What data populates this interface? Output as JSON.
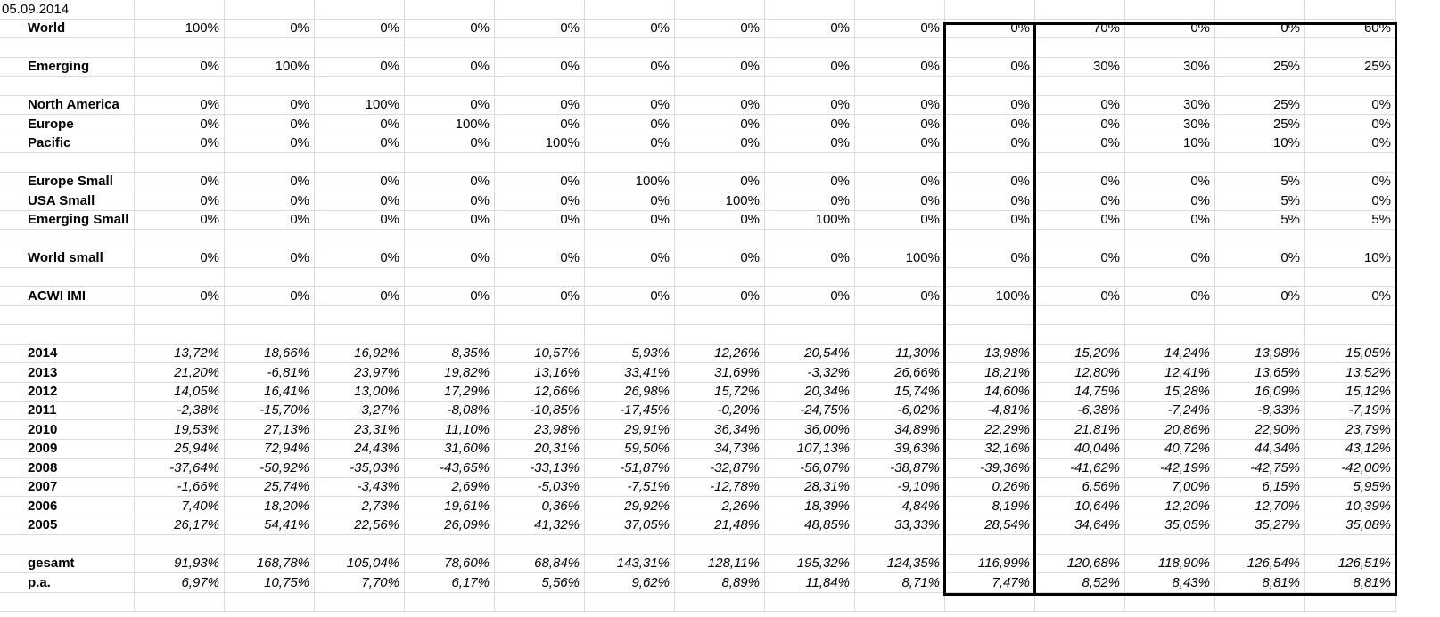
{
  "sheet": {
    "date": "05.09.2014",
    "allocations": [
      {
        "label": "World",
        "values": [
          "100%",
          "0%",
          "0%",
          "0%",
          "0%",
          "0%",
          "0%",
          "0%",
          "0%",
          "0%",
          "70%",
          "0%",
          "0%",
          "60%"
        ]
      },
      null,
      {
        "label": "Emerging",
        "values": [
          "0%",
          "100%",
          "0%",
          "0%",
          "0%",
          "0%",
          "0%",
          "0%",
          "0%",
          "0%",
          "30%",
          "30%",
          "25%",
          "25%"
        ]
      },
      null,
      {
        "label": "North America",
        "values": [
          "0%",
          "0%",
          "100%",
          "0%",
          "0%",
          "0%",
          "0%",
          "0%",
          "0%",
          "0%",
          "0%",
          "30%",
          "25%",
          "0%"
        ]
      },
      {
        "label": "Europe",
        "values": [
          "0%",
          "0%",
          "0%",
          "100%",
          "0%",
          "0%",
          "0%",
          "0%",
          "0%",
          "0%",
          "0%",
          "30%",
          "25%",
          "0%"
        ]
      },
      {
        "label": "Pacific",
        "values": [
          "0%",
          "0%",
          "0%",
          "0%",
          "100%",
          "0%",
          "0%",
          "0%",
          "0%",
          "0%",
          "0%",
          "10%",
          "10%",
          "0%"
        ]
      },
      null,
      {
        "label": "Europe Small",
        "values": [
          "0%",
          "0%",
          "0%",
          "0%",
          "0%",
          "100%",
          "0%",
          "0%",
          "0%",
          "0%",
          "0%",
          "0%",
          "5%",
          "0%"
        ]
      },
      {
        "label": "USA Small",
        "values": [
          "0%",
          "0%",
          "0%",
          "0%",
          "0%",
          "0%",
          "100%",
          "0%",
          "0%",
          "0%",
          "0%",
          "0%",
          "5%",
          "0%"
        ]
      },
      {
        "label": "Emerging Small",
        "values": [
          "0%",
          "0%",
          "0%",
          "0%",
          "0%",
          "0%",
          "0%",
          "100%",
          "0%",
          "0%",
          "0%",
          "0%",
          "5%",
          "5%"
        ]
      },
      null,
      {
        "label": "World small",
        "values": [
          "0%",
          "0%",
          "0%",
          "0%",
          "0%",
          "0%",
          "0%",
          "0%",
          "100%",
          "0%",
          "0%",
          "0%",
          "0%",
          "10%"
        ]
      },
      null,
      {
        "label": "ACWI IMI",
        "values": [
          "0%",
          "0%",
          "0%",
          "0%",
          "0%",
          "0%",
          "0%",
          "0%",
          "0%",
          "100%",
          "0%",
          "0%",
          "0%",
          "0%"
        ]
      }
    ],
    "returns": [
      {
        "label": "2014",
        "values": [
          "13,72%",
          "18,66%",
          "16,92%",
          "8,35%",
          "10,57%",
          "5,93%",
          "12,26%",
          "20,54%",
          "11,30%",
          "13,98%",
          "15,20%",
          "14,24%",
          "13,98%",
          "15,05%"
        ]
      },
      {
        "label": "2013",
        "values": [
          "21,20%",
          "-6,81%",
          "23,97%",
          "19,82%",
          "13,16%",
          "33,41%",
          "31,69%",
          "-3,32%",
          "26,66%",
          "18,21%",
          "12,80%",
          "12,41%",
          "13,65%",
          "13,52%"
        ]
      },
      {
        "label": "2012",
        "values": [
          "14,05%",
          "16,41%",
          "13,00%",
          "17,29%",
          "12,66%",
          "26,98%",
          "15,72%",
          "20,34%",
          "15,74%",
          "14,60%",
          "14,75%",
          "15,28%",
          "16,09%",
          "15,12%"
        ]
      },
      {
        "label": "2011",
        "values": [
          "-2,38%",
          "-15,70%",
          "3,27%",
          "-8,08%",
          "-10,85%",
          "-17,45%",
          "-0,20%",
          "-24,75%",
          "-6,02%",
          "-4,81%",
          "-6,38%",
          "-7,24%",
          "-8,33%",
          "-7,19%"
        ]
      },
      {
        "label": "2010",
        "values": [
          "19,53%",
          "27,13%",
          "23,31%",
          "11,10%",
          "23,98%",
          "29,91%",
          "36,34%",
          "36,00%",
          "34,89%",
          "22,29%",
          "21,81%",
          "20,86%",
          "22,90%",
          "23,79%"
        ]
      },
      {
        "label": "2009",
        "values": [
          "25,94%",
          "72,94%",
          "24,43%",
          "31,60%",
          "20,31%",
          "59,50%",
          "34,73%",
          "107,13%",
          "39,63%",
          "32,16%",
          "40,04%",
          "40,72%",
          "44,34%",
          "43,12%"
        ]
      },
      {
        "label": "2008",
        "values": [
          "-37,64%",
          "-50,92%",
          "-35,03%",
          "-43,65%",
          "-33,13%",
          "-51,87%",
          "-32,87%",
          "-56,07%",
          "-38,87%",
          "-39,36%",
          "-41,62%",
          "-42,19%",
          "-42,75%",
          "-42,00%"
        ]
      },
      {
        "label": "2007",
        "values": [
          "-1,66%",
          "25,74%",
          "-3,43%",
          "2,69%",
          "-5,03%",
          "-7,51%",
          "-12,78%",
          "28,31%",
          "-9,10%",
          "0,26%",
          "6,56%",
          "7,00%",
          "6,15%",
          "5,95%"
        ]
      },
      {
        "label": "2006",
        "values": [
          "7,40%",
          "18,20%",
          "2,73%",
          "19,61%",
          "0,36%",
          "29,92%",
          "2,26%",
          "18,39%",
          "4,84%",
          "8,19%",
          "10,64%",
          "12,20%",
          "12,70%",
          "10,39%"
        ]
      },
      {
        "label": "2005",
        "values": [
          "26,17%",
          "54,41%",
          "22,56%",
          "26,09%",
          "41,32%",
          "37,05%",
          "21,48%",
          "48,85%",
          "33,33%",
          "28,54%",
          "34,64%",
          "35,05%",
          "35,27%",
          "35,08%"
        ]
      }
    ],
    "summary": [
      {
        "label": "gesamt",
        "values": [
          "91,93%",
          "168,78%",
          "105,04%",
          "78,60%",
          "68,84%",
          "143,31%",
          "128,11%",
          "195,32%",
          "124,35%",
          "116,99%",
          "120,68%",
          "118,90%",
          "126,54%",
          "126,51%"
        ]
      },
      {
        "label": "p.a.",
        "values": [
          "6,97%",
          "10,75%",
          "7,70%",
          "6,17%",
          "5,56%",
          "9,62%",
          "8,89%",
          "11,84%",
          "8,71%",
          "7,47%",
          "8,52%",
          "8,43%",
          "8,81%",
          "8,81%"
        ]
      }
    ]
  }
}
